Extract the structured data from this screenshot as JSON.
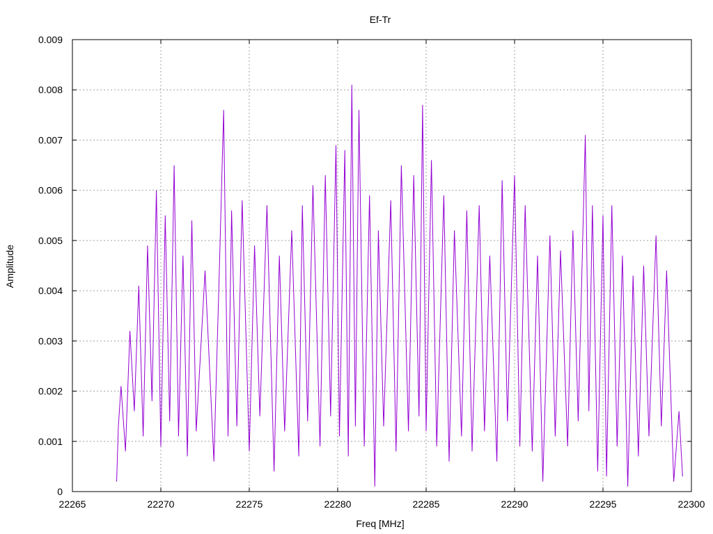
{
  "chart_data": {
    "type": "line",
    "title": "Ef-Tr",
    "xlabel": "Freq [MHz]",
    "ylabel": "Amplitude",
    "xlim": [
      22265,
      22300
    ],
    "ylim": [
      0,
      0.009
    ],
    "x_ticks": [
      "22265",
      "22270",
      "22275",
      "22280",
      "22285",
      "22290",
      "22295",
      "22300"
    ],
    "y_ticks": [
      "0",
      "0.001",
      "0.002",
      "0.003",
      "0.004",
      "0.005",
      "0.006",
      "0.007",
      "0.008",
      "0.009"
    ],
    "grid": true,
    "series": [
      {
        "color": "#9400d3",
        "x": [
          22267.5,
          22267.6,
          22267.75,
          22268.0,
          22268.25,
          22268.5,
          22268.75,
          22269.0,
          22269.25,
          22269.5,
          22269.75,
          22270.0,
          22270.25,
          22270.5,
          22270.75,
          22271.0,
          22271.25,
          22271.5,
          22271.75,
          22272.0,
          22272.5,
          22273.0,
          22273.3,
          22273.55,
          22273.8,
          22274.0,
          22274.3,
          22274.6,
          22275.0,
          22275.3,
          22275.6,
          22276.0,
          22276.4,
          22276.7,
          22277.0,
          22277.4,
          22277.8,
          22278.0,
          22278.3,
          22278.6,
          22279.0,
          22279.3,
          22279.6,
          22279.9,
          22280.1,
          22280.4,
          22280.6,
          22280.8,
          22281.0,
          22281.2,
          22281.5,
          22281.8,
          22282.1,
          22282.3,
          22282.6,
          22283.0,
          22283.3,
          22283.6,
          22284.0,
          22284.3,
          22284.6,
          22284.8,
          22285.0,
          22285.3,
          22285.6,
          22286.0,
          22286.3,
          22286.6,
          22287.0,
          22287.3,
          22287.6,
          22288.0,
          22288.3,
          22288.6,
          22289.0,
          22289.3,
          22289.6,
          22290.0,
          22290.3,
          22290.6,
          22291.0,
          22291.3,
          22291.6,
          22292.0,
          22292.3,
          22292.6,
          22293.0,
          22293.3,
          22293.6,
          22294.0,
          22294.2,
          22294.4,
          22294.7,
          22295.0,
          22295.2,
          22295.5,
          22295.8,
          22296.1,
          22296.4,
          22296.7,
          22297.0,
          22297.3,
          22297.6,
          22298.0,
          22298.3,
          22298.6,
          22299.0,
          22299.3,
          22299.5
        ],
        "y": [
          0.0002,
          0.0013,
          0.0021,
          0.0008,
          0.0032,
          0.0016,
          0.0041,
          0.0011,
          0.0049,
          0.0018,
          0.006,
          0.0009,
          0.0055,
          0.0014,
          0.0065,
          0.0011,
          0.0047,
          0.0007,
          0.0054,
          0.0012,
          0.0044,
          0.0006,
          0.0043,
          0.0076,
          0.0011,
          0.0056,
          0.0013,
          0.0058,
          0.0008,
          0.0049,
          0.0015,
          0.0057,
          0.0004,
          0.0047,
          0.0012,
          0.0052,
          0.0007,
          0.0057,
          0.0014,
          0.0061,
          0.0009,
          0.0063,
          0.0015,
          0.0069,
          0.0011,
          0.0068,
          0.0007,
          0.0081,
          0.0013,
          0.0076,
          0.0009,
          0.0059,
          0.0001,
          0.0052,
          0.0013,
          0.0058,
          0.0008,
          0.0065,
          0.0012,
          0.0063,
          0.0015,
          0.0077,
          0.0012,
          0.0066,
          0.0009,
          0.0059,
          0.0006,
          0.0052,
          0.0011,
          0.0056,
          0.0008,
          0.0057,
          0.0012,
          0.0047,
          0.0006,
          0.0062,
          0.0014,
          0.0063,
          0.0009,
          0.0057,
          0.0008,
          0.0047,
          0.0002,
          0.0051,
          0.0011,
          0.0048,
          0.0009,
          0.0052,
          0.0014,
          0.0071,
          0.0016,
          0.0057,
          0.0004,
          0.0055,
          0.0003,
          0.0057,
          0.0009,
          0.0047,
          0.0001,
          0.0043,
          0.0007,
          0.0045,
          0.0011,
          0.0051,
          0.0013,
          0.0044,
          0.0002,
          0.0016,
          0.0003
        ]
      }
    ]
  }
}
